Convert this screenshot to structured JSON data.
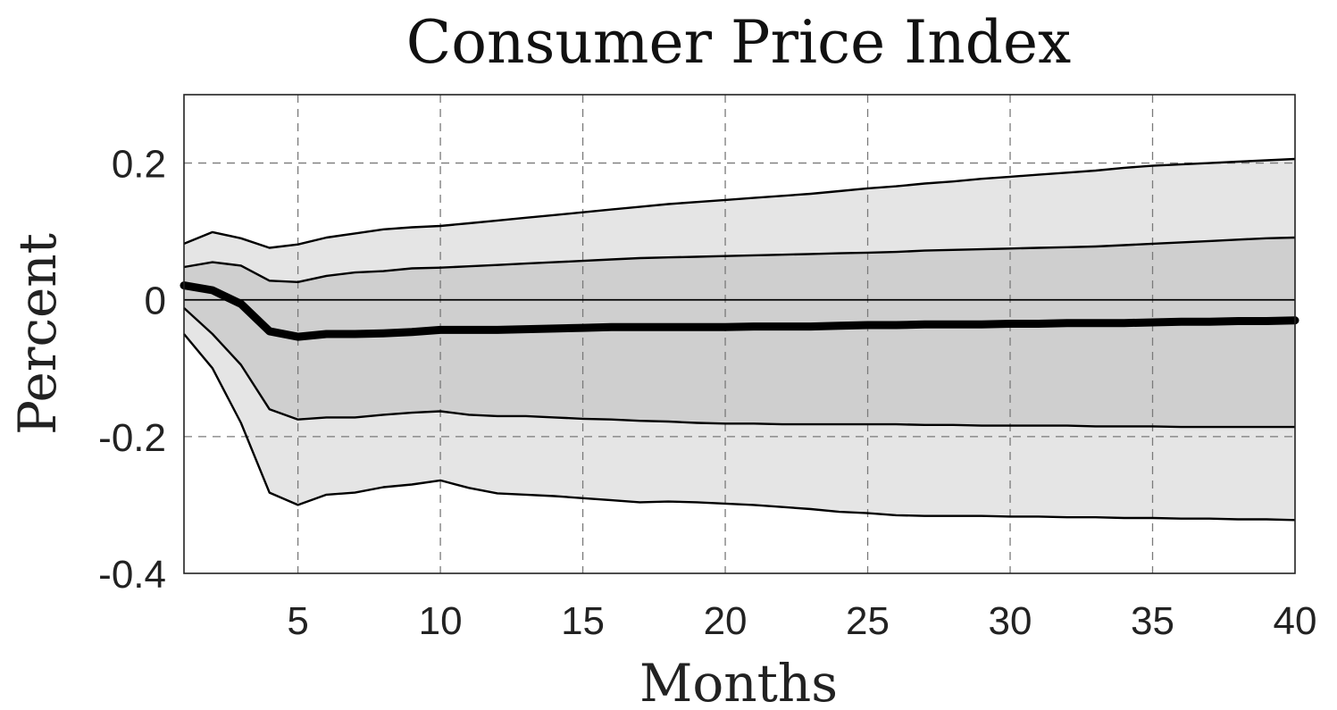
{
  "chart_data": {
    "type": "area",
    "title": "Consumer Price Index",
    "xlabel": "Months",
    "ylabel": "Percent",
    "xlim": [
      1,
      40
    ],
    "ylim": [
      -0.4,
      0.3
    ],
    "xticks": [
      5,
      10,
      15,
      20,
      25,
      30,
      35,
      40
    ],
    "xtick_labels": [
      "5",
      "10",
      "15",
      "20",
      "25",
      "30",
      "35",
      "40"
    ],
    "yticks": [
      0.2,
      0,
      -0.2,
      -0.4
    ],
    "ytick_labels": [
      "0.2",
      "0",
      "-0.2",
      "-0.4"
    ],
    "grid": true,
    "x": [
      1,
      2,
      3,
      4,
      5,
      6,
      7,
      8,
      9,
      10,
      11,
      12,
      13,
      14,
      15,
      16,
      17,
      18,
      19,
      20,
      21,
      22,
      23,
      24,
      25,
      26,
      27,
      28,
      29,
      30,
      31,
      32,
      33,
      34,
      35,
      36,
      37,
      38,
      39,
      40
    ],
    "series": [
      {
        "role": "median",
        "values": [
          0.021,
          0.014,
          -0.006,
          -0.046,
          -0.054,
          -0.05,
          -0.05,
          -0.049,
          -0.047,
          -0.044,
          -0.044,
          -0.044,
          -0.043,
          -0.042,
          -0.041,
          -0.04,
          -0.04,
          -0.04,
          -0.04,
          -0.04,
          -0.039,
          -0.039,
          -0.039,
          -0.038,
          -0.037,
          -0.037,
          -0.036,
          -0.036,
          -0.036,
          -0.035,
          -0.035,
          -0.034,
          -0.034,
          -0.034,
          -0.033,
          -0.032,
          -0.032,
          -0.031,
          -0.031,
          -0.03
        ]
      },
      {
        "role": "inner_upper",
        "values": [
          0.048,
          0.055,
          0.05,
          0.028,
          0.026,
          0.035,
          0.04,
          0.042,
          0.046,
          0.047,
          0.049,
          0.051,
          0.053,
          0.055,
          0.057,
          0.059,
          0.061,
          0.062,
          0.063,
          0.064,
          0.065,
          0.066,
          0.067,
          0.068,
          0.069,
          0.07,
          0.072,
          0.073,
          0.074,
          0.075,
          0.076,
          0.077,
          0.078,
          0.08,
          0.082,
          0.084,
          0.086,
          0.088,
          0.09,
          0.091
        ]
      },
      {
        "role": "inner_lower",
        "values": [
          -0.012,
          -0.05,
          -0.095,
          -0.16,
          -0.175,
          -0.172,
          -0.172,
          -0.168,
          -0.165,
          -0.163,
          -0.168,
          -0.17,
          -0.17,
          -0.172,
          -0.174,
          -0.175,
          -0.177,
          -0.178,
          -0.18,
          -0.181,
          -0.181,
          -0.182,
          -0.182,
          -0.182,
          -0.182,
          -0.182,
          -0.183,
          -0.183,
          -0.184,
          -0.184,
          -0.184,
          -0.184,
          -0.185,
          -0.185,
          -0.185,
          -0.186,
          -0.186,
          -0.186,
          -0.186,
          -0.186
        ]
      },
      {
        "role": "outer_upper",
        "values": [
          0.082,
          0.099,
          0.09,
          0.076,
          0.081,
          0.091,
          0.097,
          0.103,
          0.106,
          0.108,
          0.112,
          0.116,
          0.12,
          0.124,
          0.128,
          0.132,
          0.136,
          0.14,
          0.143,
          0.146,
          0.149,
          0.152,
          0.155,
          0.159,
          0.163,
          0.166,
          0.17,
          0.173,
          0.177,
          0.18,
          0.183,
          0.186,
          0.189,
          0.193,
          0.196,
          0.198,
          0.2,
          0.202,
          0.204,
          0.206
        ]
      },
      {
        "role": "outer_lower",
        "values": [
          -0.05,
          -0.1,
          -0.18,
          -0.282,
          -0.3,
          -0.285,
          -0.282,
          -0.274,
          -0.27,
          -0.264,
          -0.275,
          -0.283,
          -0.285,
          -0.287,
          -0.29,
          -0.293,
          -0.296,
          -0.295,
          -0.296,
          -0.298,
          -0.3,
          -0.303,
          -0.306,
          -0.31,
          -0.312,
          -0.315,
          -0.316,
          -0.316,
          -0.316,
          -0.317,
          -0.317,
          -0.318,
          -0.318,
          -0.319,
          -0.319,
          -0.32,
          -0.32,
          -0.321,
          -0.321,
          -0.322
        ]
      }
    ],
    "colors": {
      "outer_band": "#e5e5e5",
      "inner_band": "#cfcfcf",
      "median_line": "#000000",
      "band_edge": "#000000",
      "grid": "#7a7a7a",
      "zero_line": "#000000"
    }
  }
}
